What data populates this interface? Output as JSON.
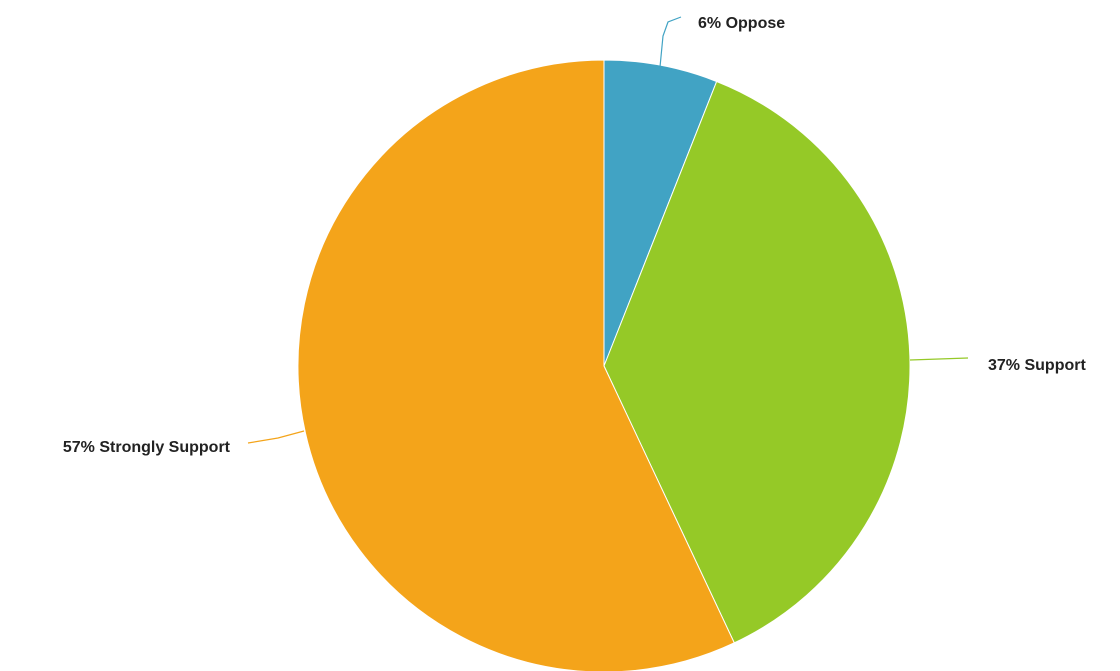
{
  "chart_data": {
    "type": "pie",
    "start_angle_deg": 0,
    "direction": "clockwise",
    "slices": [
      {
        "label": "Oppose",
        "value": 6,
        "display": "6% Oppose",
        "color": "#41a3c4"
      },
      {
        "label": "Support",
        "value": 37,
        "display": "37% Support",
        "color": "#95c927"
      },
      {
        "label": "Strongly Support",
        "value": 57,
        "display": "57% Strongly Support",
        "color": "#f4a41a"
      }
    ]
  }
}
